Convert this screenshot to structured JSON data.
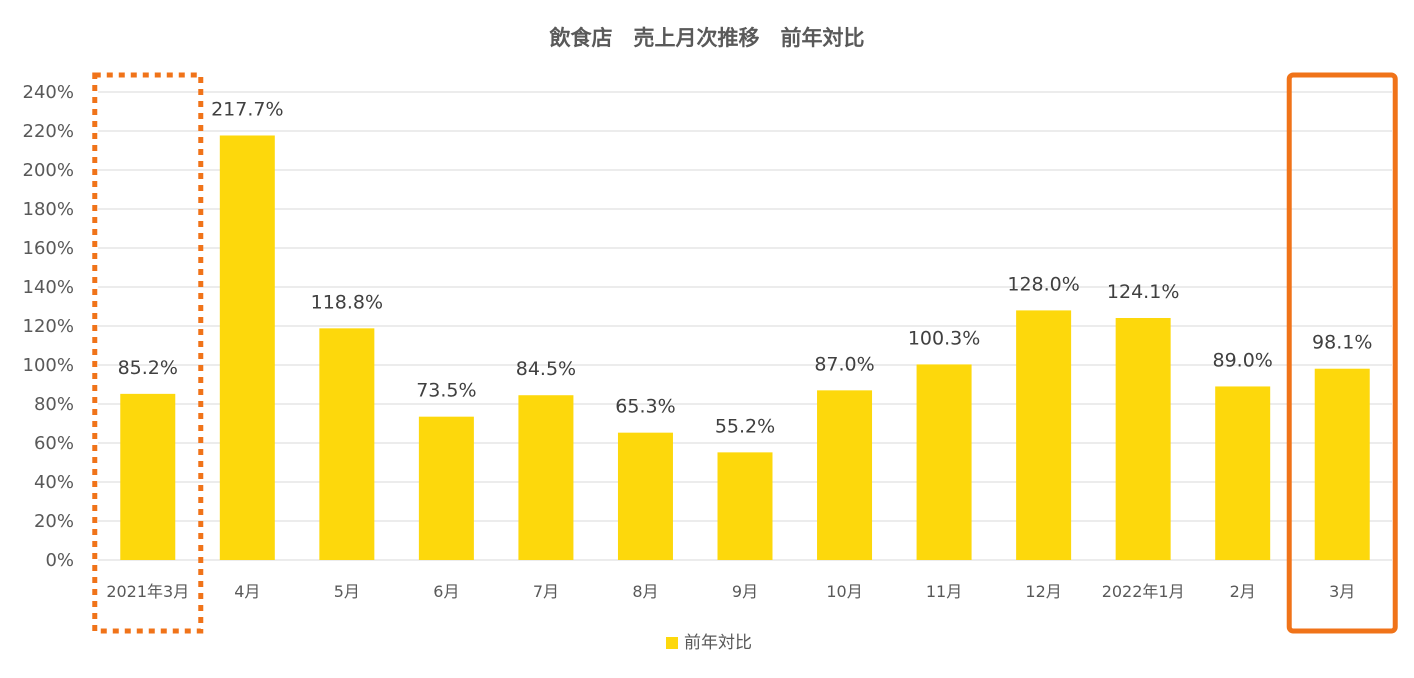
{
  "chart_data": {
    "type": "bar",
    "title": "飲食店　売上月次推移　前年対比",
    "categories": [
      "2021年3月",
      "4月",
      "5月",
      "6月",
      "7月",
      "8月",
      "9月",
      "10月",
      "11月",
      "12月",
      "2022年1月",
      "2月",
      "3月"
    ],
    "series": [
      {
        "name": "前年対比",
        "values": [
          85.2,
          217.7,
          118.8,
          73.5,
          84.5,
          65.3,
          55.2,
          87.0,
          100.3,
          128.0,
          124.1,
          89.0,
          98.1
        ],
        "labels": [
          "85.2%",
          "217.7%",
          "118.8%",
          "73.5%",
          "84.5%",
          "65.3%",
          "55.2%",
          "87.0%",
          "100.3%",
          "128.0%",
          "124.1%",
          "89.0%",
          "98.1%"
        ]
      }
    ],
    "y_ticks": [
      "0%",
      "20%",
      "40%",
      "60%",
      "80%",
      "100%",
      "120%",
      "140%",
      "160%",
      "180%",
      "200%",
      "220%",
      "240%"
    ],
    "ylim": [
      0,
      240
    ],
    "grid": true,
    "legend_position": "bottom",
    "highlights": [
      {
        "category": "2021年3月",
        "style": "dotted"
      },
      {
        "category": "3月",
        "style": "solid"
      }
    ]
  },
  "colors": {
    "bar": "#FDD80C",
    "highlight": "#F07319",
    "grid": "#D9D9D9",
    "text": "#595959"
  }
}
